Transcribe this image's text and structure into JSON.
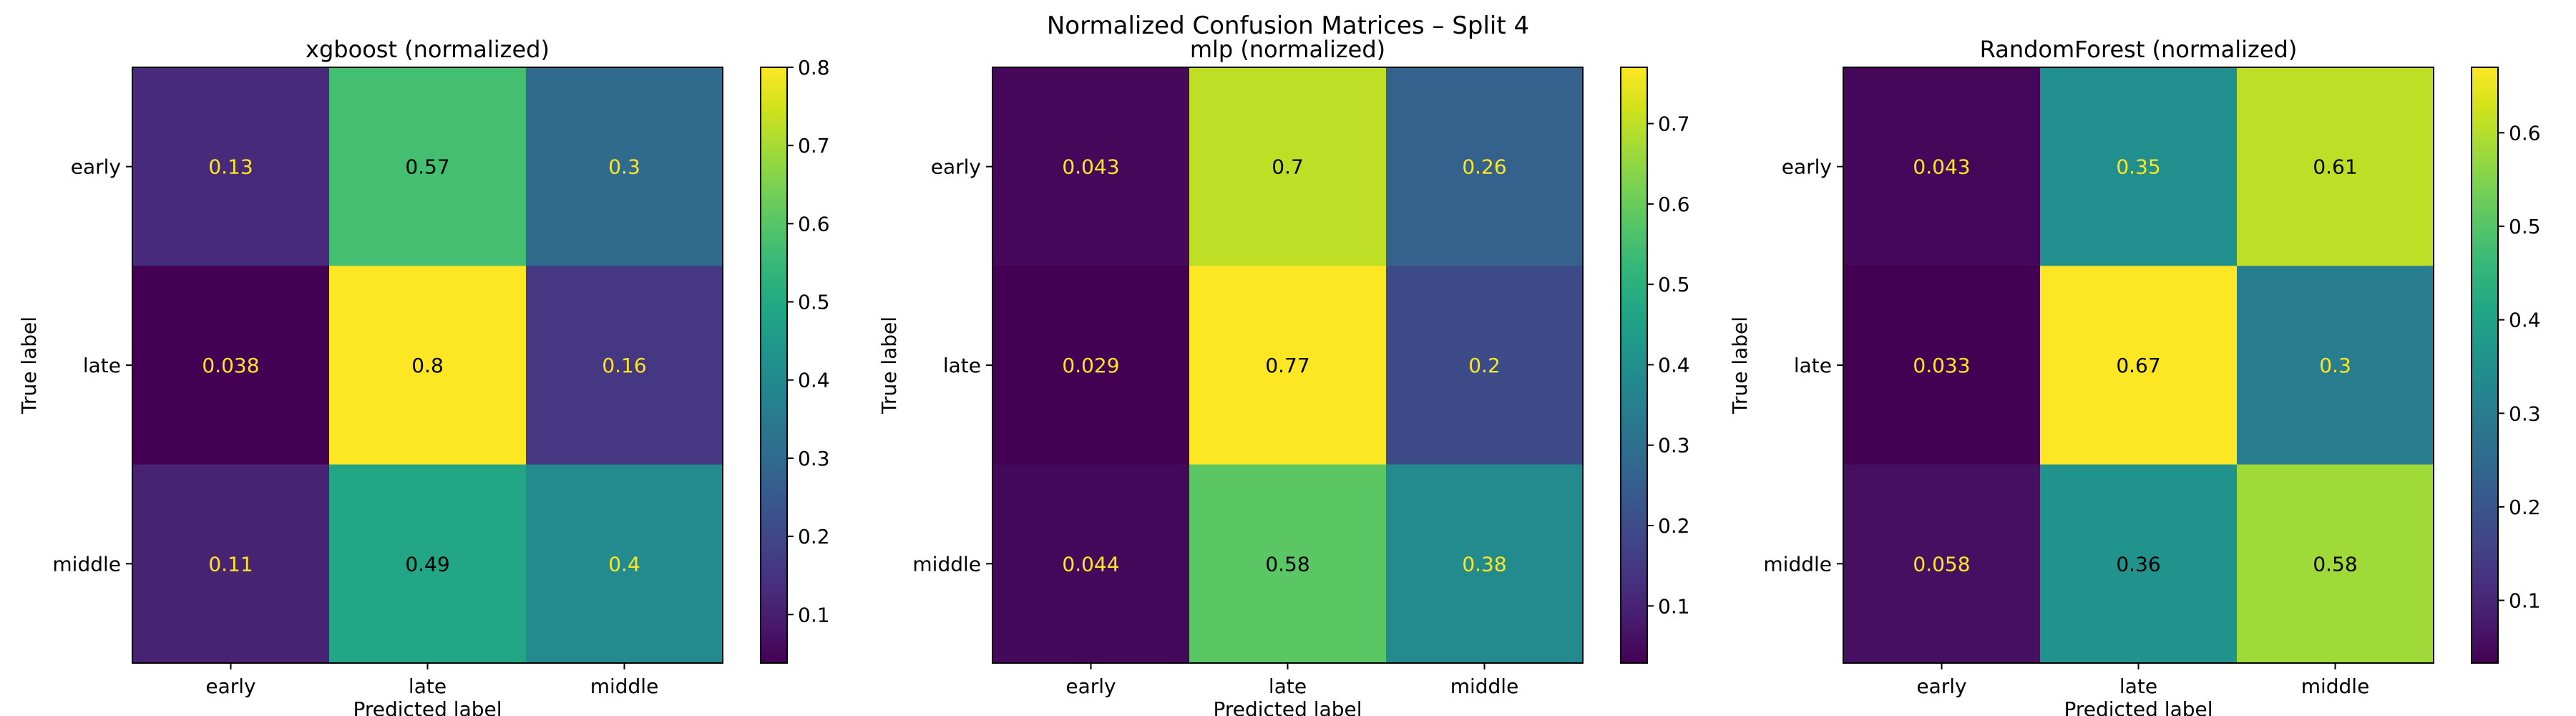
{
  "figure": {
    "suptitle": "Normalized Confusion Matrices – Split 4"
  },
  "chart_data": [
    {
      "type": "heatmap",
      "title": "xgboost (normalized)",
      "xlabel": "Predicted label",
      "ylabel": "True label",
      "x_categories": [
        "early",
        "late",
        "middle"
      ],
      "y_categories": [
        "early",
        "late",
        "middle"
      ],
      "values": [
        [
          0.13,
          0.57,
          0.3
        ],
        [
          0.038,
          0.8,
          0.16
        ],
        [
          0.11,
          0.49,
          0.4
        ]
      ],
      "labels": [
        [
          "0.13",
          "0.57",
          "0.3"
        ],
        [
          "0.038",
          "0.8",
          "0.16"
        ],
        [
          "0.11",
          "0.49",
          "0.4"
        ]
      ],
      "colormap": "viridis",
      "vmin": 0.038,
      "vmax": 0.8,
      "colorbar_ticks": [
        "0.1",
        "0.2",
        "0.3",
        "0.4",
        "0.5",
        "0.6",
        "0.7",
        "0.8"
      ]
    },
    {
      "type": "heatmap",
      "title": "mlp (normalized)",
      "xlabel": "Predicted label",
      "ylabel": "True label",
      "x_categories": [
        "early",
        "late",
        "middle"
      ],
      "y_categories": [
        "early",
        "late",
        "middle"
      ],
      "values": [
        [
          0.043,
          0.7,
          0.26
        ],
        [
          0.029,
          0.77,
          0.2
        ],
        [
          0.044,
          0.58,
          0.38
        ]
      ],
      "labels": [
        [
          "0.043",
          "0.7",
          "0.26"
        ],
        [
          "0.029",
          "0.77",
          "0.2"
        ],
        [
          "0.044",
          "0.58",
          "0.38"
        ]
      ],
      "colormap": "viridis",
      "vmin": 0.029,
      "vmax": 0.77,
      "colorbar_ticks": [
        "0.1",
        "0.2",
        "0.3",
        "0.4",
        "0.5",
        "0.6",
        "0.7"
      ]
    },
    {
      "type": "heatmap",
      "title": "RandomForest (normalized)",
      "xlabel": "Predicted label",
      "ylabel": "True label",
      "x_categories": [
        "early",
        "late",
        "middle"
      ],
      "y_categories": [
        "early",
        "late",
        "middle"
      ],
      "values": [
        [
          0.043,
          0.35,
          0.61
        ],
        [
          0.033,
          0.67,
          0.3
        ],
        [
          0.058,
          0.36,
          0.58
        ]
      ],
      "labels": [
        [
          "0.043",
          "0.35",
          "0.61"
        ],
        [
          "0.033",
          "0.67",
          "0.3"
        ],
        [
          "0.058",
          "0.36",
          "0.58"
        ]
      ],
      "colormap": "viridis",
      "vmin": 0.033,
      "vmax": 0.67,
      "colorbar_ticks": [
        "0.1",
        "0.2",
        "0.3",
        "0.4",
        "0.5",
        "0.6"
      ]
    }
  ]
}
